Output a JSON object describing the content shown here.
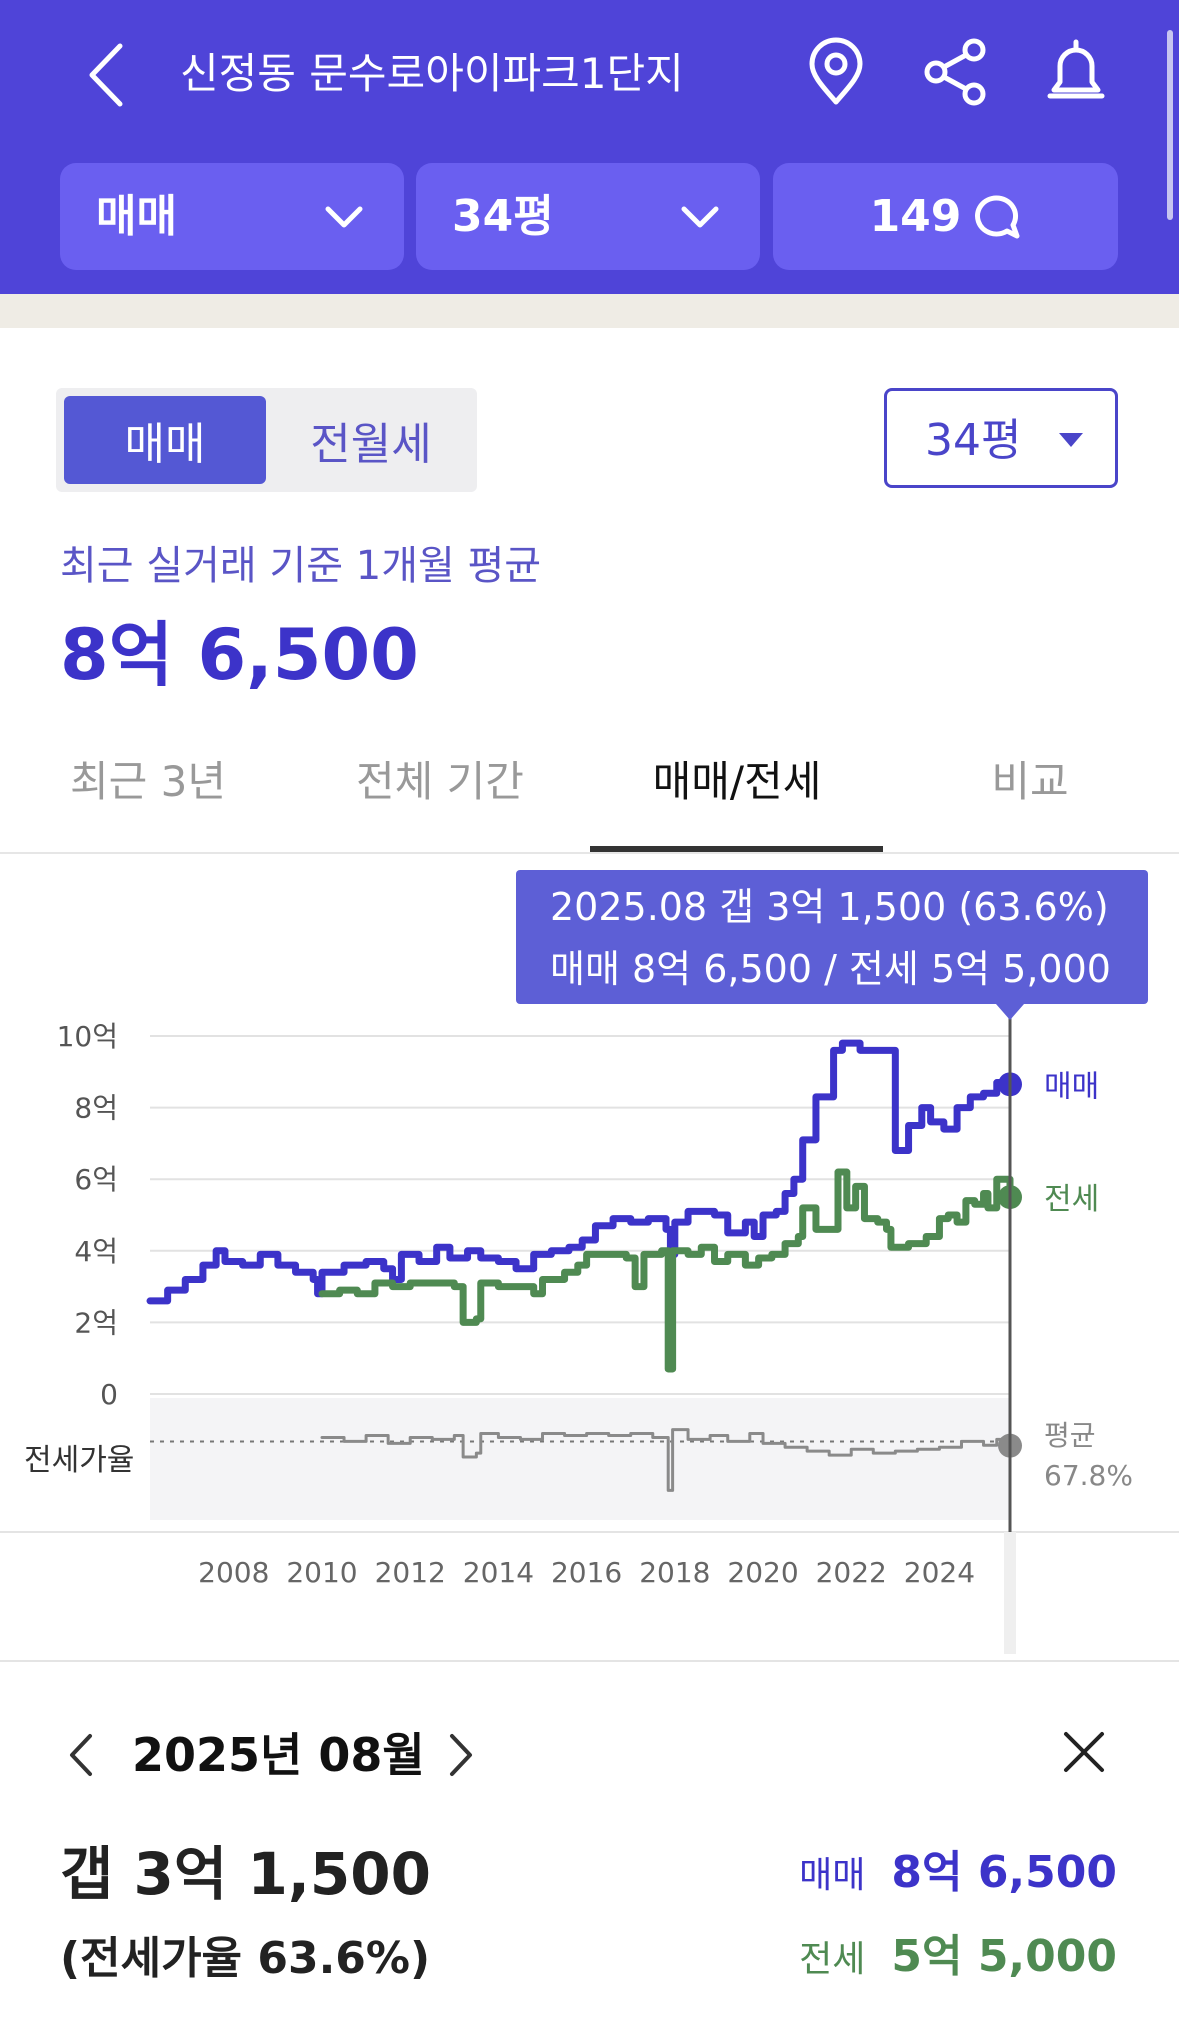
{
  "header": {
    "title": "신정동 문수로아이파크1단지",
    "dropdown_type": "매매",
    "dropdown_size": "34평",
    "comment_count": "149"
  },
  "controls": {
    "segment": [
      "매매",
      "전월세"
    ],
    "segment_selected": "매매",
    "size_select": "34평"
  },
  "summary": {
    "subtitle": "최근 실거래 기준 1개월 평균",
    "price": "8억 6,500"
  },
  "tabs": [
    {
      "label": "최근 3년",
      "active": false
    },
    {
      "label": "전체 기간",
      "active": false
    },
    {
      "label": "매매/전세",
      "active": true
    },
    {
      "label": "비교",
      "active": false
    }
  ],
  "tooltip": {
    "line1": "2025.08  갭 3억 1,500 (63.6%)",
    "line2": "매매 8억 6,500 / 전세 5억 5,000"
  },
  "colors": {
    "header": "#4f44d8",
    "sale": "#3c33c9",
    "jeonse": "#4f8a52",
    "ratio": "#8a8a8a"
  },
  "chart_data": {
    "type": "line",
    "y_ticks": [
      "10억",
      "8억",
      "6억",
      "4억",
      "2억",
      "0"
    ],
    "ylim": [
      0,
      10
    ],
    "x_ticks": [
      "2008",
      "2010",
      "2012",
      "2014",
      "2016",
      "2018",
      "2020",
      "2022",
      "2024"
    ],
    "xlim": [
      2006.1,
      2025.6
    ],
    "ratio_label": "전세가율",
    "ratio_avg_label": "평균",
    "ratio_avg_value": "67.8%",
    "series": [
      {
        "name": "매매",
        "color": "#3c33c9",
        "points": [
          [
            2006.1,
            2.6
          ],
          [
            2006.5,
            2.9
          ],
          [
            2006.9,
            3.2
          ],
          [
            2007.3,
            3.6
          ],
          [
            2007.6,
            4.0
          ],
          [
            2007.8,
            3.7
          ],
          [
            2008.2,
            3.6
          ],
          [
            2008.6,
            3.9
          ],
          [
            2009.0,
            3.6
          ],
          [
            2009.4,
            3.4
          ],
          [
            2009.8,
            3.2
          ],
          [
            2009.9,
            2.8
          ],
          [
            2010.0,
            3.4
          ],
          [
            2010.5,
            3.6
          ],
          [
            2011.0,
            3.7
          ],
          [
            2011.4,
            3.5
          ],
          [
            2011.6,
            3.2
          ],
          [
            2011.8,
            3.9
          ],
          [
            2012.2,
            3.7
          ],
          [
            2012.6,
            4.1
          ],
          [
            2012.9,
            3.8
          ],
          [
            2013.3,
            4.0
          ],
          [
            2013.6,
            3.8
          ],
          [
            2014.0,
            3.7
          ],
          [
            2014.4,
            3.5
          ],
          [
            2014.8,
            3.9
          ],
          [
            2015.2,
            4.0
          ],
          [
            2015.6,
            4.1
          ],
          [
            2015.9,
            4.3
          ],
          [
            2016.2,
            4.7
          ],
          [
            2016.6,
            4.9
          ],
          [
            2017.0,
            4.8
          ],
          [
            2017.4,
            4.9
          ],
          [
            2017.8,
            4.6
          ],
          [
            2017.9,
            3.9
          ],
          [
            2018.0,
            4.8
          ],
          [
            2018.3,
            5.1
          ],
          [
            2018.9,
            5.0
          ],
          [
            2019.2,
            4.5
          ],
          [
            2019.6,
            4.8
          ],
          [
            2019.8,
            4.4
          ],
          [
            2020.0,
            5.0
          ],
          [
            2020.3,
            5.1
          ],
          [
            2020.5,
            5.6
          ],
          [
            2020.7,
            6.0
          ],
          [
            2020.9,
            7.1
          ],
          [
            2021.2,
            8.3
          ],
          [
            2021.6,
            9.6
          ],
          [
            2021.8,
            9.8
          ],
          [
            2022.2,
            9.6
          ],
          [
            2022.6,
            9.6
          ],
          [
            2022.95,
            9.6
          ],
          [
            2023.0,
            6.8
          ],
          [
            2023.2,
            6.8
          ],
          [
            2023.3,
            7.5
          ],
          [
            2023.6,
            8.0
          ],
          [
            2023.8,
            7.6
          ],
          [
            2024.1,
            7.4
          ],
          [
            2024.4,
            8.0
          ],
          [
            2024.7,
            8.3
          ],
          [
            2025.0,
            8.4
          ],
          [
            2025.3,
            8.7
          ],
          [
            2025.6,
            8.65
          ]
        ]
      },
      {
        "name": "전세",
        "color": "#4f8a52",
        "points": [
          [
            2010.0,
            2.8
          ],
          [
            2010.4,
            2.9
          ],
          [
            2010.8,
            2.8
          ],
          [
            2011.0,
            2.8
          ],
          [
            2011.2,
            3.1
          ],
          [
            2011.6,
            3.0
          ],
          [
            2012.0,
            3.1
          ],
          [
            2012.4,
            3.1
          ],
          [
            2013.0,
            3.0
          ],
          [
            2013.2,
            2.0
          ],
          [
            2013.5,
            2.1
          ],
          [
            2013.6,
            3.1
          ],
          [
            2014.0,
            3.0
          ],
          [
            2014.5,
            3.0
          ],
          [
            2014.8,
            2.8
          ],
          [
            2015.0,
            3.2
          ],
          [
            2015.5,
            3.4
          ],
          [
            2015.8,
            3.6
          ],
          [
            2016.0,
            3.9
          ],
          [
            2016.5,
            3.9
          ],
          [
            2016.9,
            3.8
          ],
          [
            2017.1,
            3.0
          ],
          [
            2017.3,
            3.9
          ],
          [
            2017.7,
            4.0
          ],
          [
            2017.85,
            0.7
          ],
          [
            2017.95,
            4.0
          ],
          [
            2018.3,
            3.9
          ],
          [
            2018.6,
            4.1
          ],
          [
            2018.9,
            3.7
          ],
          [
            2019.2,
            3.9
          ],
          [
            2019.6,
            3.6
          ],
          [
            2019.9,
            3.8
          ],
          [
            2020.2,
            3.9
          ],
          [
            2020.5,
            4.2
          ],
          [
            2020.8,
            4.4
          ],
          [
            2020.9,
            5.2
          ],
          [
            2021.2,
            4.6
          ],
          [
            2021.5,
            4.6
          ],
          [
            2021.7,
            6.2
          ],
          [
            2021.9,
            5.2
          ],
          [
            2022.1,
            5.8
          ],
          [
            2022.3,
            4.9
          ],
          [
            2022.6,
            4.8
          ],
          [
            2022.8,
            4.6
          ],
          [
            2022.9,
            4.1
          ],
          [
            2023.3,
            4.2
          ],
          [
            2023.7,
            4.4
          ],
          [
            2024.0,
            4.9
          ],
          [
            2024.2,
            5.0
          ],
          [
            2024.4,
            4.8
          ],
          [
            2024.6,
            5.4
          ],
          [
            2024.8,
            5.3
          ],
          [
            2025.0,
            5.6
          ],
          [
            2025.1,
            5.2
          ],
          [
            2025.3,
            6.0
          ],
          [
            2025.6,
            5.5
          ]
        ]
      },
      {
        "name": "전세가율",
        "color": "#8a8a8a",
        "points": [
          [
            2010.0,
            72
          ],
          [
            2010.5,
            68
          ],
          [
            2011.0,
            74
          ],
          [
            2011.5,
            66
          ],
          [
            2012.0,
            72
          ],
          [
            2012.5,
            70
          ],
          [
            2013.0,
            74
          ],
          [
            2013.2,
            52
          ],
          [
            2013.5,
            56
          ],
          [
            2013.6,
            76
          ],
          [
            2014.0,
            72
          ],
          [
            2014.5,
            70
          ],
          [
            2015.0,
            76
          ],
          [
            2015.5,
            74
          ],
          [
            2016.0,
            76
          ],
          [
            2016.5,
            74
          ],
          [
            2017.0,
            76
          ],
          [
            2017.5,
            72
          ],
          [
            2017.85,
            18
          ],
          [
            2017.95,
            80
          ],
          [
            2018.3,
            70
          ],
          [
            2018.8,
            74
          ],
          [
            2019.2,
            68
          ],
          [
            2019.7,
            76
          ],
          [
            2020.0,
            66
          ],
          [
            2020.5,
            62
          ],
          [
            2021.0,
            58
          ],
          [
            2021.5,
            54
          ],
          [
            2022.0,
            60
          ],
          [
            2022.5,
            56
          ],
          [
            2023.0,
            58
          ],
          [
            2023.5,
            60
          ],
          [
            2024.0,
            62
          ],
          [
            2024.5,
            68
          ],
          [
            2025.0,
            64
          ],
          [
            2025.3,
            70
          ],
          [
            2025.6,
            63.6
          ]
        ]
      }
    ]
  },
  "detail": {
    "month": "2025년 08월",
    "gap": "갭 3억 1,500",
    "rate": "(전세가율 63.6%)",
    "sale_label": "매매",
    "sale_value": "8억 6,500",
    "jeonse_label": "전세",
    "jeonse_value": "5억 5,000"
  }
}
